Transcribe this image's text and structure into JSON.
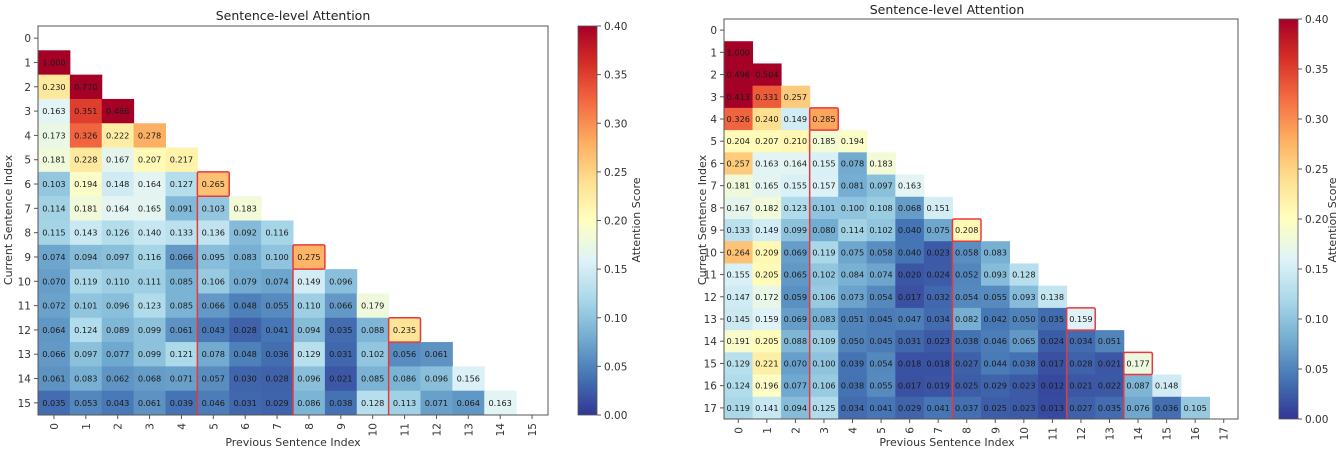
{
  "chart_data": [
    {
      "type": "heatmap",
      "title": "Sentence-level Attention",
      "xlabel": "Previous Sentence Index",
      "ylabel": "Current Sentence Index",
      "colorbar_label": "Attention Score",
      "colormap": "RdYlBu_r",
      "vmin": 0.0,
      "vmax": 0.4,
      "colorbar_ticks": [
        "0.00",
        "0.05",
        "0.10",
        "0.15",
        "0.20",
        "0.25",
        "0.30",
        "0.35",
        "0.40"
      ],
      "n": 16,
      "x_ticks": [
        "0",
        "1",
        "2",
        "3",
        "4",
        "5",
        "6",
        "7",
        "8",
        "9",
        "10",
        "11",
        "12",
        "13",
        "14",
        "15"
      ],
      "y_ticks": [
        "0",
        "1",
        "2",
        "3",
        "4",
        "5",
        "6",
        "7",
        "8",
        "9",
        "10",
        "11",
        "12",
        "13",
        "14",
        "15"
      ],
      "highlight_color": "#e8383d",
      "highlighted_cells": [
        [
          6,
          5
        ],
        [
          9,
          8
        ],
        [
          12,
          11
        ]
      ],
      "rows": [
        [],
        [
          1.0
        ],
        [
          0.23,
          0.77
        ],
        [
          0.163,
          0.351,
          0.486
        ],
        [
          0.173,
          0.326,
          0.222,
          0.278
        ],
        [
          0.181,
          0.228,
          0.167,
          0.207,
          0.217
        ],
        [
          0.103,
          0.194,
          0.148,
          0.164,
          0.127,
          0.265
        ],
        [
          0.114,
          0.181,
          0.164,
          0.165,
          0.091,
          0.103,
          0.183
        ],
        [
          0.115,
          0.143,
          0.126,
          0.14,
          0.133,
          0.136,
          0.092,
          0.116
        ],
        [
          0.074,
          0.094,
          0.097,
          0.116,
          0.066,
          0.095,
          0.083,
          0.1,
          0.275
        ],
        [
          0.07,
          0.119,
          0.11,
          0.111,
          0.085,
          0.106,
          0.079,
          0.074,
          0.149,
          0.096
        ],
        [
          0.072,
          0.101,
          0.096,
          0.123,
          0.085,
          0.066,
          0.048,
          0.055,
          0.11,
          0.066,
          0.179
        ],
        [
          0.064,
          0.124,
          0.089,
          0.099,
          0.061,
          0.043,
          0.028,
          0.041,
          0.094,
          0.035,
          0.088,
          0.235
        ],
        [
          0.066,
          0.097,
          0.077,
          0.099,
          0.121,
          0.078,
          0.048,
          0.036,
          0.129,
          0.031,
          0.102,
          0.056,
          0.061
        ],
        [
          0.061,
          0.083,
          0.062,
          0.068,
          0.071,
          0.057,
          0.03,
          0.028,
          0.096,
          0.021,
          0.085,
          0.086,
          0.096,
          0.156
        ],
        [
          0.035,
          0.053,
          0.043,
          0.061,
          0.039,
          0.046,
          0.031,
          0.029,
          0.086,
          0.038,
          0.128,
          0.113,
          0.071,
          0.064,
          0.163
        ]
      ]
    },
    {
      "type": "heatmap",
      "title": "Sentence-level Attention",
      "xlabel": "Previous Sentence Index",
      "ylabel": "Current Sentence Index",
      "colorbar_label": "Attention Score",
      "colormap": "RdYlBu_r",
      "vmin": 0.0,
      "vmax": 0.4,
      "colorbar_ticks": [
        "0.00",
        "0.05",
        "0.10",
        "0.15",
        "0.20",
        "0.25",
        "0.30",
        "0.35",
        "0.40"
      ],
      "n": 18,
      "x_ticks": [
        "0",
        "1",
        "2",
        "3",
        "4",
        "5",
        "6",
        "7",
        "8",
        "9",
        "10",
        "11",
        "12",
        "13",
        "14",
        "15",
        "16",
        "17"
      ],
      "y_ticks": [
        "0",
        "1",
        "2",
        "3",
        "4",
        "5",
        "6",
        "7",
        "8",
        "9",
        "10",
        "11",
        "12",
        "13",
        "14",
        "15",
        "16",
        "17"
      ],
      "highlight_color": "#e8383d",
      "highlighted_cells": [
        [
          4,
          3
        ],
        [
          9,
          8
        ],
        [
          13,
          12
        ],
        [
          15,
          14
        ]
      ],
      "rows": [
        [],
        [
          1.0
        ],
        [
          0.496,
          0.504
        ],
        [
          0.413,
          0.331,
          0.257
        ],
        [
          0.326,
          0.24,
          0.149,
          0.285
        ],
        [
          0.204,
          0.207,
          0.21,
          0.185,
          0.194
        ],
        [
          0.257,
          0.163,
          0.164,
          0.155,
          0.078,
          0.183
        ],
        [
          0.181,
          0.165,
          0.155,
          0.157,
          0.081,
          0.097,
          0.163
        ],
        [
          0.167,
          0.182,
          0.123,
          0.101,
          0.1,
          0.108,
          0.068,
          0.151
        ],
        [
          0.133,
          0.149,
          0.099,
          0.08,
          0.114,
          0.102,
          0.04,
          0.075,
          0.208
        ],
        [
          0.264,
          0.209,
          0.069,
          0.119,
          0.075,
          0.058,
          0.04,
          0.023,
          0.058,
          0.083
        ],
        [
          0.155,
          0.205,
          0.065,
          0.102,
          0.084,
          0.074,
          0.02,
          0.024,
          0.052,
          0.093,
          0.128
        ],
        [
          0.147,
          0.172,
          0.059,
          0.106,
          0.073,
          0.054,
          0.017,
          0.032,
          0.054,
          0.055,
          0.093,
          0.138
        ],
        [
          0.145,
          0.159,
          0.069,
          0.083,
          0.051,
          0.045,
          0.047,
          0.034,
          0.082,
          0.042,
          0.05,
          0.035,
          0.159
        ],
        [
          0.191,
          0.205,
          0.088,
          0.109,
          0.05,
          0.045,
          0.031,
          0.023,
          0.038,
          0.046,
          0.065,
          0.024,
          0.034,
          0.051
        ],
        [
          0.129,
          0.221,
          0.07,
          0.1,
          0.039,
          0.054,
          0.018,
          0.018,
          0.027,
          0.044,
          0.038,
          0.017,
          0.028,
          0.021,
          0.177
        ],
        [
          0.124,
          0.196,
          0.077,
          0.106,
          0.038,
          0.055,
          0.017,
          0.019,
          0.025,
          0.029,
          0.023,
          0.012,
          0.021,
          0.022,
          0.087,
          0.148
        ],
        [
          0.119,
          0.141,
          0.094,
          0.125,
          0.034,
          0.041,
          0.029,
          0.041,
          0.037,
          0.025,
          0.023,
          0.013,
          0.027,
          0.035,
          0.076,
          0.036,
          0.105
        ]
      ]
    }
  ]
}
